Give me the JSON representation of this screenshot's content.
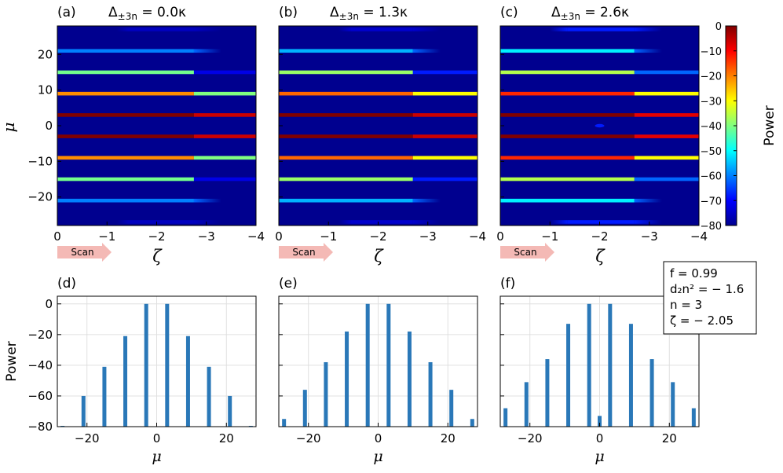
{
  "figure": {
    "panel_labels": [
      "(a)",
      "(b)",
      "(c)",
      "(d)",
      "(e)",
      "(f)"
    ],
    "delta_prefix": "Δ",
    "delta_sub": "±3n",
    "delta_values": [
      " = 0.0κ",
      " = 1.3κ",
      " = 2.6κ"
    ],
    "scan_label": "Scan",
    "zeta_symbol": "ζ",
    "mu_symbol": "μ",
    "power_label": "Power",
    "params": [
      "f = 0.99",
      "d₂n² = − 1.6",
      "n = 3",
      "ζ = − 2.05"
    ],
    "colors": {
      "background": "#00008f",
      "arrow": "#f4b9b5",
      "bar": "#2a78b8",
      "grid": "#e0e0e0"
    }
  },
  "chart_data": [
    {
      "type": "heatmap",
      "panel": "(a)",
      "title": "Δ±3n = 0.0κ",
      "xlabel": "ζ",
      "ylabel": "μ",
      "xlim": [
        0,
        -4
      ],
      "ylim": [
        -28,
        28
      ],
      "x_ticks": [
        0,
        -1,
        -2,
        -3,
        -4
      ],
      "y_ticks": [
        -20,
        -10,
        0,
        10,
        20
      ],
      "split_zeta": -2.75,
      "rows": [
        {
          "mu": 27,
          "left": -75,
          "right": -80,
          "left_fade": [
            -1.2,
            -1.45
          ]
        },
        {
          "mu": 21,
          "left": -60,
          "right": -80
        },
        {
          "mu": 15,
          "left": -41,
          "right": -72
        },
        {
          "mu": 9,
          "left": -21,
          "right": -40
        },
        {
          "mu": 3,
          "left": 0,
          "right": -6
        },
        {
          "mu": -3,
          "left": 0,
          "right": -6
        },
        {
          "mu": -9,
          "left": -21,
          "right": -40
        },
        {
          "mu": -15,
          "left": -41,
          "right": -72
        },
        {
          "mu": -21,
          "left": -60,
          "right": -80
        },
        {
          "mu": -27,
          "left": -75,
          "right": -80,
          "left_fade": [
            -1.2,
            -1.45
          ]
        }
      ],
      "colorbar": {
        "label": "Power",
        "range": [
          -80,
          0
        ],
        "ticks": [
          0,
          -10,
          -20,
          -30,
          -40,
          -50,
          -60,
          -70,
          -80
        ]
      }
    },
    {
      "type": "heatmap",
      "panel": "(b)",
      "title": "Δ±3n = 1.3κ",
      "xlabel": "ζ",
      "ylabel": "μ",
      "xlim": [
        0,
        -4
      ],
      "ylim": [
        -28,
        28
      ],
      "x_ticks": [
        0,
        -1,
        -2,
        -3,
        -4
      ],
      "y_ticks": [
        -20,
        -10,
        0,
        10,
        20
      ],
      "split_zeta": -2.7,
      "rows": [
        {
          "mu": 27,
          "left": -74,
          "right": -80,
          "left_fade": [
            -1.2,
            -1.45
          ]
        },
        {
          "mu": 21,
          "left": -56,
          "right": -80
        },
        {
          "mu": 15,
          "left": -38,
          "right": -68
        },
        {
          "mu": 9,
          "left": -18,
          "right": -30
        },
        {
          "mu": 3,
          "left": 0,
          "right": -6
        },
        {
          "mu": -3,
          "left": 0,
          "right": -6
        },
        {
          "mu": -9,
          "left": -18,
          "right": -30
        },
        {
          "mu": -15,
          "left": -38,
          "right": -68
        },
        {
          "mu": -21,
          "left": -56,
          "right": -80
        },
        {
          "mu": -27,
          "left": -74,
          "right": -80,
          "left_fade": [
            -1.2,
            -1.45
          ]
        }
      ]
    },
    {
      "type": "heatmap",
      "panel": "(c)",
      "title": "Δ±3n = 2.6κ",
      "xlabel": "ζ",
      "ylabel": "μ",
      "xlim": [
        0,
        -4
      ],
      "ylim": [
        -28,
        28
      ],
      "x_ticks": [
        0,
        -1,
        -2,
        -3,
        -4
      ],
      "y_ticks": [
        -20,
        -10,
        0,
        10,
        20
      ],
      "split_zeta": -2.7,
      "rows": [
        {
          "mu": 27,
          "left": -68,
          "right": -80,
          "left_fade": [
            -1.0,
            -1.35
          ]
        },
        {
          "mu": 21,
          "left": -51,
          "right": -80
        },
        {
          "mu": 15,
          "left": -36,
          "right": -62
        },
        {
          "mu": 9,
          "left": -13,
          "right": -30
        },
        {
          "mu": 3,
          "left": 0,
          "right": -8
        },
        {
          "mu": -3,
          "left": 0,
          "right": -8
        },
        {
          "mu": -9,
          "left": -13,
          "right": -30
        },
        {
          "mu": -15,
          "left": -36,
          "right": -62
        },
        {
          "mu": -21,
          "left": -51,
          "right": -80
        },
        {
          "mu": -27,
          "left": -68,
          "right": -80,
          "left_fade": [
            -1.0,
            -1.35
          ]
        }
      ],
      "spot": {
        "mu": 0,
        "zeta": -2.0,
        "power": -68
      }
    },
    {
      "type": "bar",
      "panel": "(d)",
      "xlabel": "μ",
      "ylabel": "Power",
      "xlim": [
        -28.5,
        28.5
      ],
      "ylim": [
        -80,
        5
      ],
      "x_ticks": [
        -20,
        0,
        20
      ],
      "y_ticks": [
        0,
        -20,
        -40,
        -60,
        -80
      ],
      "x": [
        -27,
        -21,
        -15,
        -9,
        -3,
        3,
        9,
        15,
        21,
        27
      ],
      "values": [
        -80,
        -60,
        -41,
        -21,
        0,
        0,
        -21,
        -41,
        -60,
        -80
      ]
    },
    {
      "type": "bar",
      "panel": "(e)",
      "xlabel": "μ",
      "xlim": [
        -28.5,
        28.5
      ],
      "ylim": [
        -80,
        5
      ],
      "x_ticks": [
        -20,
        0,
        20
      ],
      "x": [
        -27,
        -21,
        -15,
        -9,
        -3,
        3,
        9,
        15,
        21,
        27
      ],
      "values": [
        -75,
        -56,
        -38,
        -18,
        0,
        0,
        -18,
        -38,
        -56,
        -75
      ]
    },
    {
      "type": "bar",
      "panel": "(f)",
      "xlabel": "μ",
      "xlim": [
        -28.5,
        28.5
      ],
      "ylim": [
        -80,
        5
      ],
      "x_ticks": [
        -20,
        0,
        20
      ],
      "x": [
        -27,
        -21,
        -15,
        -9,
        -3,
        0,
        3,
        9,
        15,
        21,
        27
      ],
      "values": [
        -68,
        -51,
        -36,
        -13,
        0,
        -73,
        0,
        -13,
        -36,
        -51,
        -68
      ]
    }
  ]
}
